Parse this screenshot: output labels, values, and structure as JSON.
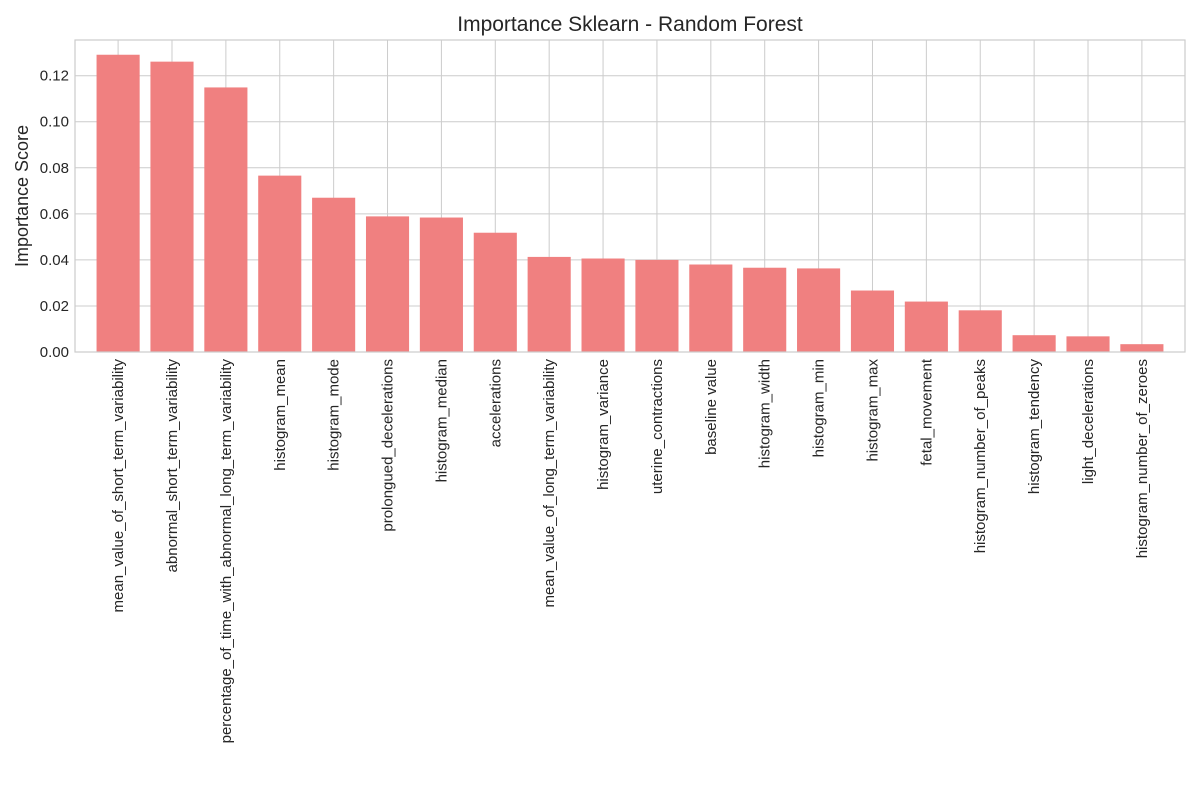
{
  "chart_data": {
    "type": "bar",
    "title": "Importance Sklearn - Random Forest",
    "xlabel": "",
    "ylabel": "Importance Score",
    "ylim": [
      0,
      0.1355
    ],
    "grid": true,
    "bar_color": "#f08080",
    "grid_color": "#cccccc",
    "yticks": [
      0.0,
      0.02,
      0.04,
      0.06,
      0.08,
      0.1,
      0.12
    ],
    "ytick_labels": [
      "0.00",
      "0.02",
      "0.04",
      "0.06",
      "0.08",
      "0.10",
      "0.12"
    ],
    "categories": [
      "mean_value_of_short_term_variability",
      "abnormal_short_term_variability",
      "percentage_of_time_with_abnormal_long_term_variability",
      "histogram_mean",
      "histogram_mode",
      "prolongued_decelerations",
      "histogram_median",
      "accelerations",
      "mean_value_of_long_term_variability",
      "histogram_variance",
      "uterine_contractions",
      "baseline value",
      "histogram_width",
      "histogram_min",
      "histogram_max",
      "fetal_movement",
      "histogram_number_of_peaks",
      "histogram_tendency",
      "light_decelerations",
      "histogram_number_of_zeroes"
    ],
    "values": [
      0.1291,
      0.1261,
      0.1149,
      0.0766,
      0.067,
      0.0589,
      0.0584,
      0.0518,
      0.0413,
      0.0406,
      0.04,
      0.038,
      0.0366,
      0.0363,
      0.0267,
      0.0219,
      0.0181,
      0.0073,
      0.0068,
      0.0034
    ]
  }
}
